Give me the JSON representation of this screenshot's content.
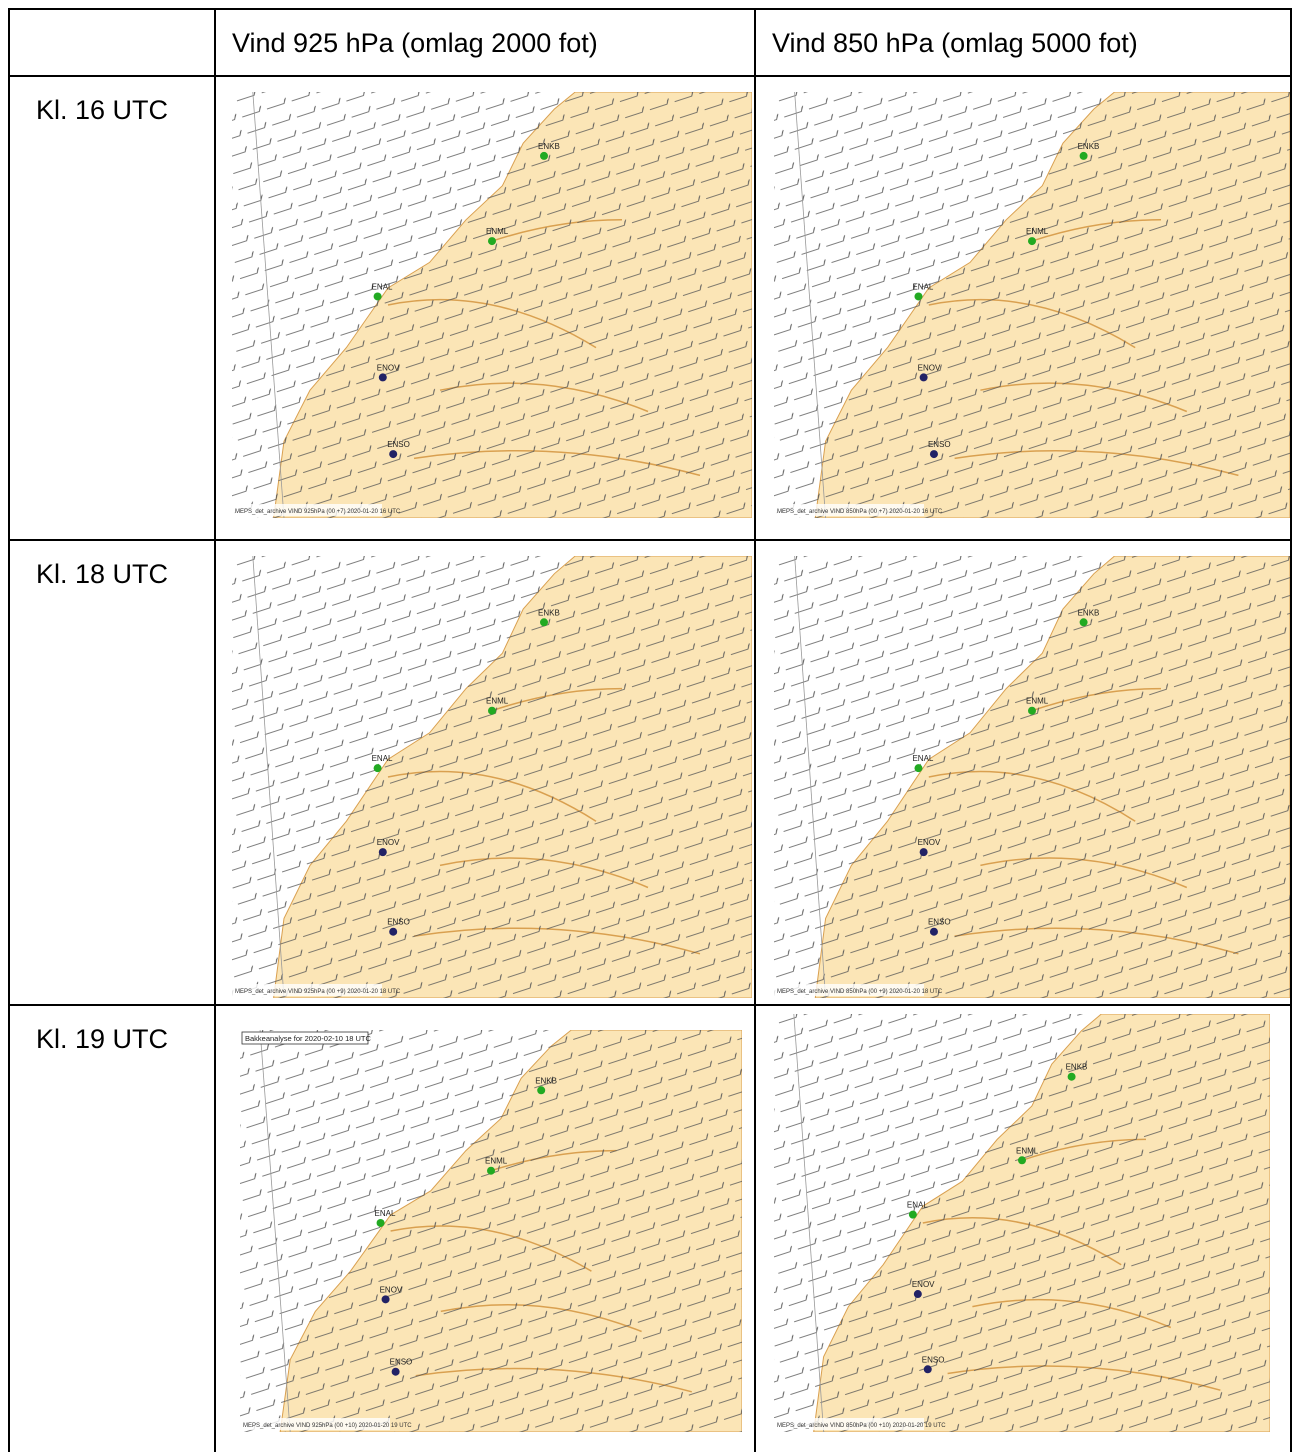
{
  "table": {
    "columns": [
      "Vind 925 hPa (omlag 2000 fot)",
      "Vind 850 hPa (omlag 5000 fot)"
    ],
    "rows": [
      {
        "label": "Kl. 16 UTC",
        "maps": [
          {
            "stations": [
              "ENKB",
              "ENML",
              "ENAL",
              "ENOV",
              "ENSO"
            ],
            "caption": "MEPS_det_archive VIND 925hPa (00 +7) 2020-01-20 16 UTC"
          },
          {
            "stations": [
              "ENKB",
              "ENML",
              "ENAL",
              "ENOV",
              "ENSO"
            ],
            "caption": "MEPS_det_archive VIND 850hPa (00 +7) 2020-01-20 16 UTC"
          }
        ]
      },
      {
        "label": "Kl. 18 UTC",
        "maps": [
          {
            "stations": [
              "ENKB",
              "ENML",
              "ENAL",
              "ENOV",
              "ENSO"
            ],
            "caption": "MEPS_det_archive VIND 925hPa (00 +9) 2020-01-20 18 UTC"
          },
          {
            "stations": [
              "ENKB",
              "ENML",
              "ENAL",
              "ENOV",
              "ENSO"
            ],
            "caption": "MEPS_det_archive VIND 850hPa (00 +9) 2020-01-20 18 UTC"
          }
        ]
      },
      {
        "label": "Kl. 19 UTC",
        "maps": [
          {
            "title": "Bakkeanalyse for 2020-02-10 18 UTC",
            "stations": [
              "ENKB",
              "ENML",
              "ENAL",
              "ENOV",
              "ENSO"
            ],
            "caption": "MEPS_det_archive VIND 925hPa (00 +10) 2020-01-20 19 UTC"
          },
          {
            "stations": [
              "ENKB",
              "ENML",
              "ENAL",
              "ENOV",
              "ENSO"
            ],
            "caption": "MEPS_det_archive VIND 850hPa (00 +10) 2020-01-20 19 UTC"
          }
        ]
      }
    ]
  }
}
